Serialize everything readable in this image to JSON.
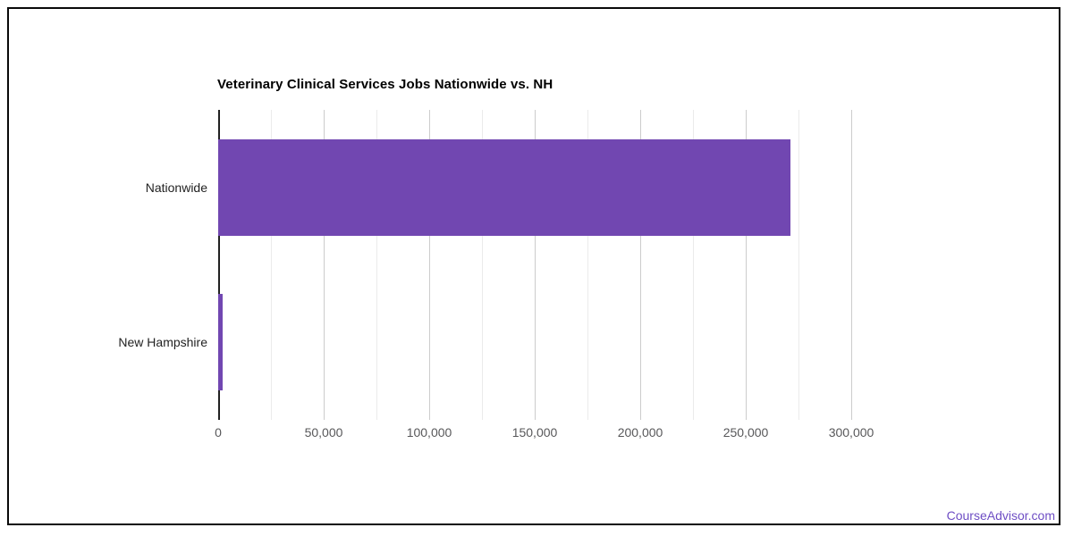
{
  "page": {
    "background_color": "#ffffff",
    "frame_border_color": "#0a0a0a"
  },
  "chart_data": {
    "type": "bar",
    "orientation": "horizontal",
    "title": "Veterinary Clinical Services Jobs Nationwide vs. NH",
    "categories": [
      "Nationwide",
      "New Hampshire"
    ],
    "values": [
      271000,
      2000
    ],
    "xlabel": "",
    "ylabel": "",
    "xlim": [
      0,
      300000
    ],
    "x_ticks": [
      {
        "value": 0,
        "label": "0"
      },
      {
        "value": 50000,
        "label": "50,000"
      },
      {
        "value": 100000,
        "label": "100,000"
      },
      {
        "value": 150000,
        "label": "150,000"
      },
      {
        "value": 200000,
        "label": "200,000"
      },
      {
        "value": 250000,
        "label": "250,000"
      },
      {
        "value": 300000,
        "label": "300,000"
      }
    ],
    "minor_grid_step": 25000,
    "major_grid_step": 50000,
    "grid": true,
    "legend_position": "none",
    "bar_color": "#7147b1",
    "axis_line_color": "#212121",
    "grid_major_color": "#cccccc",
    "grid_minor_color": "#ebebeb",
    "tick_label_color": "#58585a",
    "category_label_color": "#222222",
    "title_color": "#000000"
  },
  "footer": {
    "link_label": "CourseAdvisor.com",
    "link_color": "#6e4ec4"
  }
}
